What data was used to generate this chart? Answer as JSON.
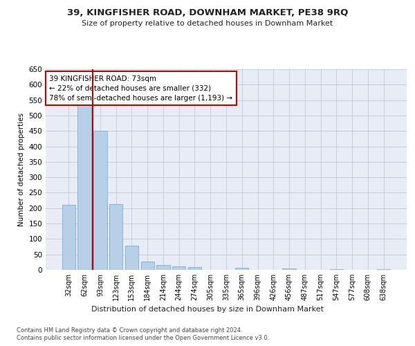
{
  "title1": "39, KINGFISHER ROAD, DOWNHAM MARKET, PE38 9RQ",
  "title2": "Size of property relative to detached houses in Downham Market",
  "xlabel": "Distribution of detached houses by size in Downham Market",
  "ylabel": "Number of detached properties",
  "footnote1": "Contains HM Land Registry data © Crown copyright and database right 2024.",
  "footnote2": "Contains public sector information licensed under the Open Government Licence v3.0.",
  "categories": [
    "32sqm",
    "62sqm",
    "93sqm",
    "123sqm",
    "153sqm",
    "184sqm",
    "214sqm",
    "244sqm",
    "274sqm",
    "305sqm",
    "335sqm",
    "365sqm",
    "396sqm",
    "426sqm",
    "456sqm",
    "487sqm",
    "517sqm",
    "547sqm",
    "577sqm",
    "608sqm",
    "638sqm"
  ],
  "values": [
    210,
    533,
    450,
    212,
    78,
    27,
    15,
    11,
    8,
    0,
    0,
    6,
    0,
    0,
    4,
    0,
    0,
    3,
    0,
    0,
    3
  ],
  "bar_color": "#b8cfe8",
  "bar_edge_color": "#7aadd4",
  "vline_x": 1.5,
  "vline_color": "#cc0000",
  "ylim": [
    0,
    650
  ],
  "yticks": [
    0,
    50,
    100,
    150,
    200,
    250,
    300,
    350,
    400,
    450,
    500,
    550,
    600,
    650
  ],
  "annotation_title": "39 KINGFISHER ROAD: 73sqm",
  "annotation_line1": "← 22% of detached houses are smaller (332)",
  "annotation_line2": "78% of semi-detached houses are larger (1,193) →",
  "annotation_box_facecolor": "#ffffff",
  "annotation_box_edgecolor": "#cc0000",
  "bg_color": "#ffffff",
  "plot_bg_color": "#e8edf5"
}
